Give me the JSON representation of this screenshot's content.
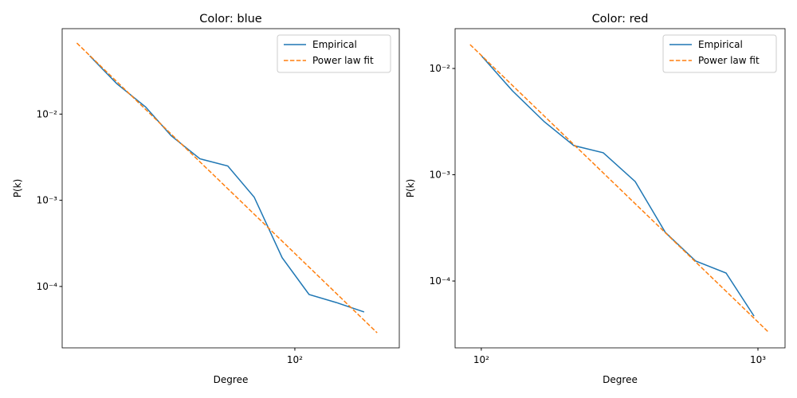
{
  "chart_data": [
    {
      "type": "line",
      "title": "Color: blue",
      "x_label": "Degree",
      "y_label": "P(k)",
      "xscale": "log",
      "yscale": "log",
      "xlim": [
        11.8,
        261
      ],
      "ylim": [
        1.94e-05,
        0.098
      ],
      "xticks": [
        {
          "value": 100,
          "label": "10²"
        }
      ],
      "yticks": [
        {
          "value": 0.0001,
          "label": "10⁻⁴"
        },
        {
          "value": 0.001,
          "label": "10⁻³"
        },
        {
          "value": 0.01,
          "label": "10⁻²"
        }
      ],
      "legend": "upper right",
      "series": [
        {
          "name": "Empirical",
          "color": "#1f77b4",
          "style": "solid",
          "x": [
            15.2,
            19.5,
            25.4,
            32.1,
            41.8,
            54.0,
            68.8,
            89.0,
            114,
            146.5,
            189
          ],
          "values": [
            0.0474,
            0.0225,
            0.0121,
            0.00562,
            0.00303,
            0.0025,
            0.00109,
            0.000216,
            8.07e-05,
            6.5e-05,
            5.06e-05
          ]
        },
        {
          "name": "Power law fit",
          "color": "#ff7f0e",
          "style": "dashed",
          "x": [
            13.5,
            213
          ],
          "values": [
            0.0667,
            2.9e-05
          ]
        }
      ]
    },
    {
      "type": "line",
      "title": "Color: red",
      "x_label": "Degree",
      "y_label": "P(k)",
      "xscale": "log",
      "yscale": "log",
      "xlim": [
        80.4,
        1253
      ],
      "ylim": [
        2.35e-05,
        0.0237
      ],
      "xticks": [
        {
          "value": 100,
          "label": "10²"
        },
        {
          "value": 1000,
          "label": "10³"
        }
      ],
      "yticks": [
        {
          "value": 0.0001,
          "label": "10⁻⁴"
        },
        {
          "value": 0.001,
          "label": "10⁻³"
        },
        {
          "value": 0.01,
          "label": "10⁻²"
        }
      ],
      "legend": "upper right",
      "series": [
        {
          "name": "Empirical",
          "color": "#1f77b4",
          "style": "solid",
          "x": [
            100,
            129.5,
            169,
            216,
            276,
            360,
            463,
            596,
            767,
            968
          ],
          "values": [
            0.0132,
            0.00617,
            0.00315,
            0.00188,
            0.00161,
            0.000863,
            0.000286,
            0.000154,
            0.000119,
            4.68e-05
          ]
        },
        {
          "name": "Power law fit",
          "color": "#ff7f0e",
          "style": "dashed",
          "x": [
            91.1,
            1097
          ],
          "values": [
            0.0168,
            3.26e-05
          ]
        }
      ]
    }
  ]
}
